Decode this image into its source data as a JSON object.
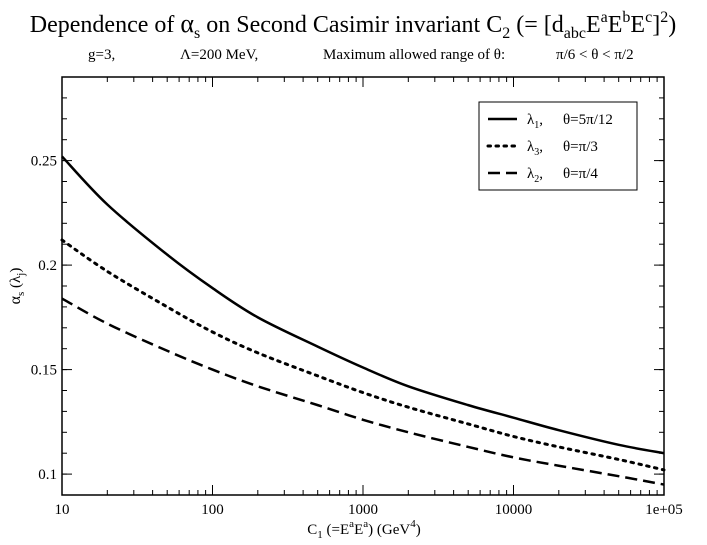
{
  "chart_data": {
    "type": "line",
    "title": {
      "prefix": "Dependence of ",
      "alpha": "α",
      "alpha_sub": "s",
      "mid": " on Second Casimir invariant C",
      "c_sub": "2",
      "eq": " (= [d",
      "d_sub": "abc",
      "e": "E",
      "a_sup": "a",
      "b_sup": "b",
      "c_sup": "c",
      "close": "]",
      "pow_sup": "2",
      "end": ")"
    },
    "subtitle": {
      "g": "g=3,",
      "lambda": "Λ=200 MeV,",
      "range_label": "Maximum allowed range of θ:",
      "range": "π/6 < θ < π/2"
    },
    "xlabel": {
      "c": "C",
      "c_sub": "1",
      "eq": " (=E",
      "a1": "a",
      "e": "E",
      "a2": "a",
      "units": ")  (GeV",
      "pow": "4",
      "end": ")"
    },
    "ylabel": {
      "alpha": "α",
      "sub": "s",
      "paren": " (λ",
      "j": "j",
      "end": ")"
    },
    "x_scale": "log",
    "xlim": [
      10,
      100000
    ],
    "ylim": [
      0.09,
      0.29
    ],
    "x_ticks": [
      10,
      100,
      1000,
      10000,
      100000
    ],
    "x_tick_labels": [
      "10",
      "100",
      "1000",
      "10000",
      "1e+05"
    ],
    "y_ticks": [
      0.1,
      0.15,
      0.2,
      0.25
    ],
    "y_tick_labels": [
      "0.1",
      "0.15",
      "0.2",
      "0.25"
    ],
    "legend_position": "top-right",
    "series": [
      {
        "name": "λ1, θ=5π/12",
        "label_lambda": "λ",
        "label_sub": "1",
        "label_theta": "θ=5π/12",
        "style": "solid",
        "x": [
          10,
          20,
          50,
          100,
          200,
          500,
          1000,
          2000,
          5000,
          10000,
          20000,
          50000,
          100000
        ],
        "y": [
          0.252,
          0.229,
          0.205,
          0.189,
          0.175,
          0.161,
          0.151,
          0.142,
          0.133,
          0.127,
          0.121,
          0.114,
          0.11
        ]
      },
      {
        "name": "λ3, θ=π/3",
        "label_lambda": "λ",
        "label_sub": "3",
        "label_theta": "θ=π/3",
        "style": "dotted",
        "x": [
          10,
          20,
          50,
          100,
          200,
          500,
          1000,
          2000,
          5000,
          10000,
          20000,
          50000,
          100000
        ],
        "y": [
          0.212,
          0.197,
          0.18,
          0.168,
          0.158,
          0.147,
          0.139,
          0.132,
          0.124,
          0.118,
          0.113,
          0.107,
          0.102
        ]
      },
      {
        "name": "λ2, θ=π/4",
        "label_lambda": "λ",
        "label_sub": "2",
        "label_theta": "θ=π/4",
        "style": "dashed",
        "x": [
          10,
          20,
          50,
          100,
          200,
          500,
          1000,
          2000,
          5000,
          10000,
          20000,
          50000,
          100000
        ],
        "y": [
          0.184,
          0.172,
          0.159,
          0.15,
          0.142,
          0.133,
          0.126,
          0.12,
          0.113,
          0.108,
          0.104,
          0.099,
          0.095
        ]
      }
    ]
  }
}
